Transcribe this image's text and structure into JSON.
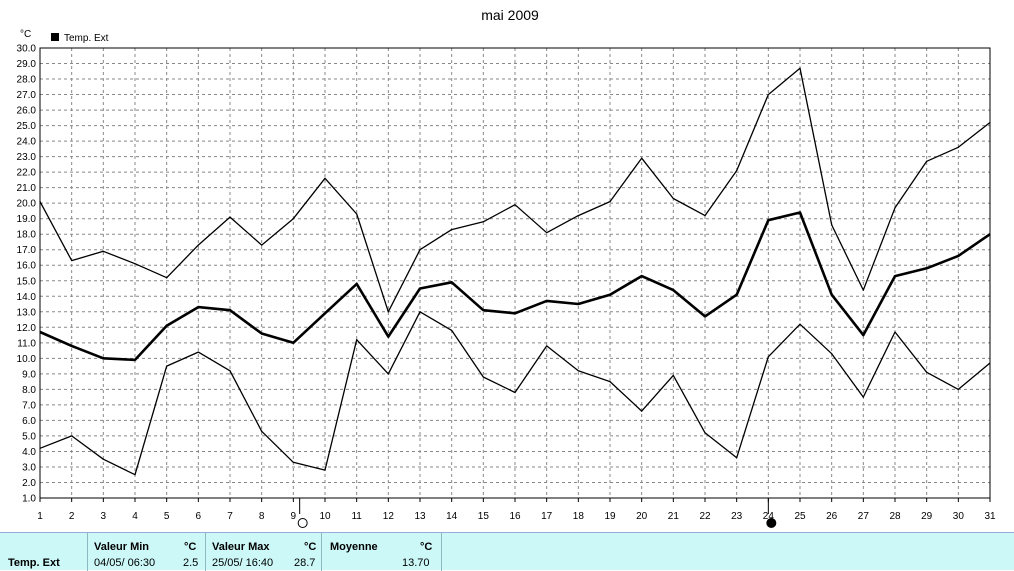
{
  "chart_data": {
    "type": "line",
    "title": "mai 2009",
    "y_unit": "°C",
    "ylim": [
      1.0,
      30.0
    ],
    "y_ticks": [
      "1.0",
      "2.0",
      "3.0",
      "4.0",
      "5.0",
      "6.0",
      "7.0",
      "8.0",
      "9.0",
      "10.0",
      "11.0",
      "12.0",
      "13.0",
      "14.0",
      "15.0",
      "16.0",
      "17.0",
      "18.0",
      "19.0",
      "20.0",
      "21.0",
      "22.0",
      "23.0",
      "24.0",
      "25.0",
      "26.0",
      "27.0",
      "28.0",
      "29.0",
      "30.0"
    ],
    "x": [
      1,
      2,
      3,
      4,
      5,
      6,
      7,
      8,
      9,
      10,
      11,
      12,
      13,
      14,
      15,
      16,
      17,
      18,
      19,
      20,
      21,
      22,
      23,
      24,
      25,
      26,
      27,
      28,
      29,
      30,
      31
    ],
    "grid": true,
    "legend": {
      "position": "top-left",
      "label": "Temp. Ext"
    },
    "series": [
      {
        "role": "max",
        "values": [
          20.1,
          16.3,
          16.9,
          16.1,
          15.2,
          17.3,
          19.1,
          17.3,
          19.0,
          21.6,
          19.3,
          13.0,
          17.0,
          18.3,
          18.8,
          19.9,
          18.1,
          19.2,
          20.1,
          22.9,
          20.3,
          19.2,
          22.1,
          27.0,
          28.7,
          18.6,
          14.4,
          19.7,
          22.7,
          23.6,
          25.2
        ]
      },
      {
        "role": "mean",
        "values": [
          11.7,
          10.8,
          10.0,
          9.9,
          12.1,
          13.3,
          13.1,
          11.6,
          11.0,
          12.9,
          14.8,
          11.4,
          14.5,
          14.9,
          13.1,
          12.9,
          13.7,
          13.5,
          14.1,
          15.3,
          14.4,
          12.7,
          14.1,
          18.9,
          19.4,
          14.1,
          11.5,
          15.3,
          15.8,
          16.6,
          18.0
        ]
      },
      {
        "role": "min",
        "values": [
          4.2,
          5.0,
          3.5,
          2.5,
          9.5,
          10.4,
          9.2,
          5.3,
          3.3,
          2.8,
          11.2,
          9.0,
          13.0,
          11.8,
          8.8,
          7.8,
          10.8,
          9.2,
          8.5,
          6.6,
          8.9,
          5.2,
          3.6,
          10.1,
          12.2,
          10.3,
          7.5,
          11.7,
          9.1,
          8.0,
          9.7
        ]
      }
    ],
    "moon_markers": [
      {
        "phase": "full",
        "day": 9.2
      },
      {
        "phase": "new",
        "day": 24.0
      }
    ]
  },
  "stats": {
    "series_label": "Temp. Ext",
    "min": {
      "header": "Valeur Min",
      "unit": "°C",
      "date": "04/05/  06:30",
      "value": "2.5"
    },
    "max": {
      "header": "Valeur Max",
      "unit": "°C",
      "date": "25/05/  16:40",
      "value": "28.7"
    },
    "mean": {
      "header": "Moyenne",
      "unit": "°C",
      "value": "13.70"
    }
  }
}
